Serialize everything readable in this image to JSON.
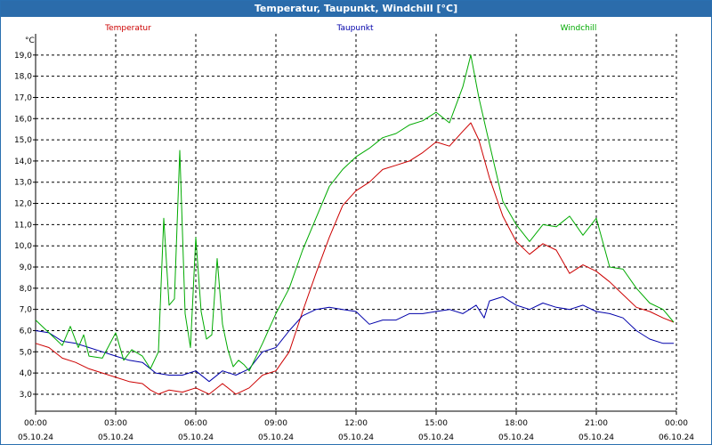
{
  "title": "Temperatur, Taupunkt, Windchill [°C]",
  "chart_data": {
    "type": "line",
    "title": "Temperatur, Taupunkt, Windchill [°C]",
    "ylabel": "°C",
    "ylim": [
      2.2,
      20.0
    ],
    "yticks": [
      3.0,
      4.0,
      5.0,
      6.0,
      7.0,
      8.0,
      9.0,
      10.0,
      11.0,
      12.0,
      13.0,
      14.0,
      15.0,
      16.0,
      17.0,
      18.0,
      19.0
    ],
    "ytick_labels": [
      "3,0",
      "4,0",
      "5,0",
      "6,0",
      "7,0",
      "8,0",
      "9,0",
      "10,0",
      "11,0",
      "12,0",
      "13,0",
      "14,0",
      "15,0",
      "16,0",
      "17,0",
      "18,0",
      "19,0"
    ],
    "xlim": [
      0,
      24
    ],
    "xticks": [
      0,
      3,
      6,
      9,
      12,
      15,
      18,
      21,
      24
    ],
    "xtick_labels": [
      {
        "time": "00:00",
        "date": "05.10.24"
      },
      {
        "time": "03:00",
        "date": "05.10.24"
      },
      {
        "time": "06:00",
        "date": "05.10.24"
      },
      {
        "time": "09:00",
        "date": "05.10.24"
      },
      {
        "time": "12:00",
        "date": "05.10.24"
      },
      {
        "time": "15:00",
        "date": "05.10.24"
      },
      {
        "time": "18:00",
        "date": "05.10.24"
      },
      {
        "time": "21:00",
        "date": "05.10.24"
      },
      {
        "time": "00:00",
        "date": "06.10.24"
      }
    ],
    "grid": true,
    "series": [
      {
        "name": "Temperatur",
        "color": "#cc0000",
        "x": [
          0,
          0.5,
          1,
          1.5,
          2,
          2.5,
          3,
          3.5,
          4,
          4.3,
          4.6,
          5,
          5.5,
          6,
          6.5,
          7,
          7.5,
          8,
          8.5,
          9,
          9.5,
          10,
          10.5,
          11,
          11.5,
          12,
          12.5,
          13,
          13.5,
          14,
          14.5,
          15,
          15.5,
          16,
          16.3,
          16.6,
          17,
          17.5,
          18,
          18.5,
          19,
          19.5,
          20,
          20.5,
          21,
          21.5,
          22,
          22.5,
          23,
          23.5,
          23.9
        ],
        "values": [
          5.4,
          5.2,
          4.7,
          4.5,
          4.2,
          4.0,
          3.8,
          3.6,
          3.5,
          3.2,
          3.0,
          3.2,
          3.1,
          3.3,
          3.0,
          3.5,
          3.0,
          3.3,
          3.9,
          4.1,
          5.0,
          6.9,
          8.7,
          10.4,
          11.9,
          12.6,
          13.0,
          13.6,
          13.8,
          14.0,
          14.4,
          14.9,
          14.7,
          15.4,
          15.8,
          15.0,
          13.2,
          11.4,
          10.2,
          9.6,
          10.1,
          9.8,
          8.7,
          9.1,
          8.8,
          8.3,
          7.7,
          7.1,
          6.9,
          6.6,
          6.4
        ]
      },
      {
        "name": "Taupunkt",
        "color": "#0000aa",
        "x": [
          0,
          0.5,
          1,
          1.5,
          2,
          2.5,
          3,
          3.5,
          4,
          4.5,
          5,
          5.5,
          6,
          6.5,
          7,
          7.5,
          8,
          8.5,
          9,
          9.5,
          10,
          10.5,
          11,
          11.5,
          12,
          12.5,
          13,
          13.5,
          14,
          14.5,
          15,
          15.5,
          16,
          16.5,
          16.8,
          17,
          17.5,
          18,
          18.5,
          19,
          19.5,
          20,
          20.5,
          21,
          21.5,
          22,
          22.5,
          23,
          23.5,
          23.9
        ],
        "values": [
          6.0,
          5.9,
          5.5,
          5.4,
          5.2,
          5.0,
          4.8,
          4.6,
          4.5,
          4.0,
          3.9,
          3.9,
          4.1,
          3.6,
          4.1,
          3.9,
          4.2,
          5.0,
          5.2,
          6.0,
          6.7,
          7.0,
          7.1,
          7.0,
          6.9,
          6.3,
          6.5,
          6.5,
          6.8,
          6.8,
          6.9,
          7.0,
          6.8,
          7.2,
          6.6,
          7.4,
          7.6,
          7.2,
          7.0,
          7.3,
          7.1,
          7.0,
          7.2,
          6.9,
          6.8,
          6.6,
          6.0,
          5.6,
          5.4,
          5.4
        ]
      },
      {
        "name": "Windchill",
        "color": "#00aa00",
        "x": [
          0,
          0.5,
          1,
          1.3,
          1.6,
          1.8,
          2,
          2.5,
          3,
          3.3,
          3.6,
          4,
          4.3,
          4.6,
          4.8,
          5,
          5.2,
          5.4,
          5.6,
          5.8,
          6.0,
          6.2,
          6.4,
          6.6,
          6.8,
          7.0,
          7.2,
          7.4,
          7.6,
          7.8,
          8,
          8.5,
          9,
          9.5,
          10,
          10.5,
          11,
          11.5,
          12,
          12.5,
          13,
          13.5,
          14,
          14.5,
          15,
          15.5,
          16,
          16.3,
          16.6,
          17,
          17.5,
          18,
          18.5,
          19,
          19.5,
          20,
          20.5,
          21,
          21.5,
          22,
          22.5,
          23,
          23.5,
          23.9
        ],
        "values": [
          6.5,
          5.9,
          5.3,
          6.2,
          5.2,
          5.8,
          4.8,
          4.7,
          5.9,
          4.6,
          5.1,
          4.8,
          4.2,
          5.0,
          11.3,
          7.2,
          7.5,
          14.5,
          6.8,
          5.2,
          10.4,
          6.9,
          5.6,
          5.8,
          9.4,
          6.3,
          5.1,
          4.3,
          4.6,
          4.4,
          4.1,
          5.4,
          6.8,
          8.0,
          9.8,
          11.3,
          12.8,
          13.6,
          14.2,
          14.6,
          15.1,
          15.3,
          15.7,
          15.9,
          16.3,
          15.8,
          17.5,
          19.0,
          17.0,
          14.8,
          12.1,
          11.0,
          10.2,
          11.0,
          10.9,
          11.4,
          10.5,
          11.3,
          9.0,
          8.9,
          8.0,
          7.3,
          7.0,
          6.4
        ]
      }
    ]
  }
}
